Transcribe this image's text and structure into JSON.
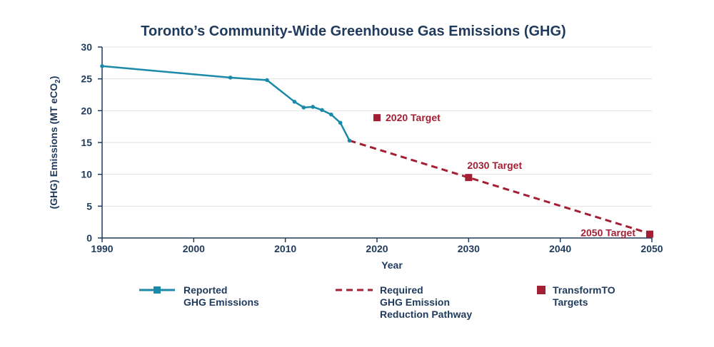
{
  "colors": {
    "reported": "#1a8aa8",
    "target": "#a31f34",
    "text": "#1f3a5c",
    "grid": "#e3e3e3",
    "axis": "#1f3a5c"
  },
  "chart_data": {
    "type": "line",
    "title": "Toronto’s Community-Wide Greenhouse Gas Emissions (GHG)",
    "xlabel": "Year",
    "ylabel_main": "(GHG) Emissions (MT eCO",
    "ylabel_sub": "2",
    "ylabel_close": ")",
    "xlim": [
      1990,
      2050
    ],
    "ylim": [
      0,
      30
    ],
    "xticks": [
      1990,
      2000,
      2010,
      2020,
      2030,
      2040,
      2050
    ],
    "yticks": [
      0,
      5,
      10,
      15,
      20,
      25,
      30
    ],
    "grid": true,
    "series": [
      {
        "key": "reported",
        "x": [
          1990,
          2004,
          2008,
          2011,
          2012,
          2013,
          2014,
          2015,
          2016,
          2017
        ],
        "y": [
          27.0,
          25.2,
          24.8,
          21.4,
          20.5,
          20.6,
          20.1,
          19.4,
          18.1,
          15.3
        ]
      },
      {
        "key": "pathway",
        "x": [
          2017,
          2030,
          2050
        ],
        "y": [
          15.3,
          9.5,
          0.6
        ]
      },
      {
        "key": "targets",
        "x": [
          2020,
          2030,
          2050
        ],
        "y": [
          18.9,
          9.5,
          0.6
        ],
        "labels": [
          "2020 Target",
          "2030 Target",
          "2050 Target"
        ]
      }
    ],
    "legend": [
      {
        "key": "reported",
        "lines": [
          "Reported",
          "GHG Emissions"
        ]
      },
      {
        "key": "pathway",
        "lines": [
          "Required",
          "GHG Emission",
          "Reduction Pathway"
        ]
      },
      {
        "key": "targets",
        "lines": [
          "TransformTO",
          "Targets"
        ]
      }
    ],
    "legend_position": "bottom"
  }
}
